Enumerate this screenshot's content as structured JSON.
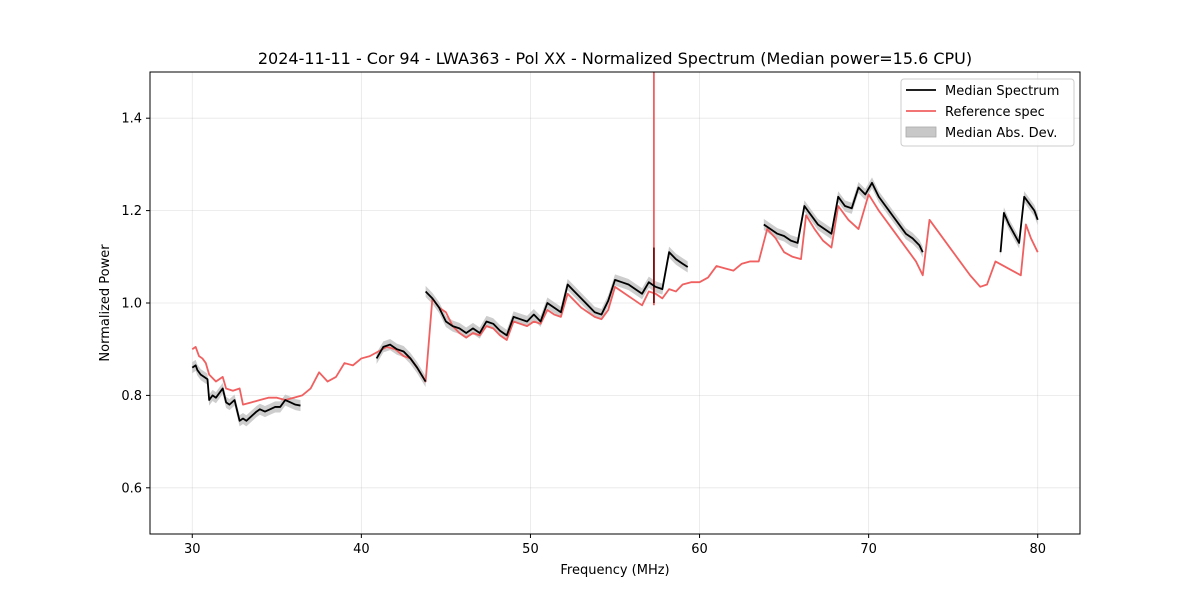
{
  "chart_data": {
    "type": "line",
    "title": "2024-11-11 - Cor 94 - LWA363 - Pol XX - Normalized Spectrum (Median power=15.6 CPU)",
    "xlabel": "Frequency (MHz)",
    "ylabel": "Normalized Power",
    "xlim": [
      27.5,
      82.5
    ],
    "ylim": [
      0.5,
      1.5
    ],
    "xticks": [
      30,
      40,
      50,
      60,
      70,
      80
    ],
    "yticks": [
      0.6,
      0.8,
      1.0,
      1.2,
      1.4
    ],
    "grid": true,
    "legend_position": "top-right",
    "colors": {
      "median": "#000000",
      "reference": "#f06060",
      "mad_band": "#c8c8c8",
      "overlap": "#7a1010"
    },
    "series": [
      {
        "name": "Median Spectrum",
        "segments": [
          {
            "x": [
              30.0,
              30.2,
              30.3,
              30.5,
              30.7,
              30.9,
              31.0,
              31.2,
              31.4,
              31.6,
              31.8,
              32.0,
              32.2,
              32.5,
              32.8,
              33.0,
              33.2,
              33.5,
              33.8,
              34.0,
              34.3,
              34.6,
              34.9,
              35.2,
              35.5,
              35.8,
              36.1,
              36.4
            ],
            "y": [
              0.86,
              0.865,
              0.855,
              0.845,
              0.84,
              0.835,
              0.79,
              0.8,
              0.795,
              0.805,
              0.815,
              0.785,
              0.78,
              0.79,
              0.745,
              0.75,
              0.745,
              0.755,
              0.765,
              0.77,
              0.765,
              0.77,
              0.775,
              0.775,
              0.79,
              0.785,
              0.78,
              0.778
            ]
          },
          {
            "x": [
              40.9,
              41.3,
              41.7,
              42.1,
              42.5,
              42.9,
              43.3,
              43.8
            ],
            "y": [
              0.88,
              0.905,
              0.91,
              0.9,
              0.895,
              0.88,
              0.86,
              0.83
            ]
          },
          {
            "x": [
              43.8,
              44.2,
              44.6,
              45.0,
              45.4,
              45.8,
              46.2,
              46.6,
              47.0,
              47.4,
              47.8,
              48.2,
              48.6,
              49.0,
              49.4,
              49.8,
              50.2,
              50.6,
              51.0,
              51.4,
              51.8,
              52.2,
              52.6,
              53.0,
              53.4,
              53.8,
              54.2,
              54.6,
              55.0,
              55.4,
              55.8,
              56.2,
              56.6,
              57.0,
              57.4,
              57.8,
              58.2,
              58.6,
              59.0,
              59.3
            ],
            "y": [
              1.025,
              1.01,
              0.99,
              0.96,
              0.95,
              0.945,
              0.935,
              0.945,
              0.935,
              0.96,
              0.955,
              0.94,
              0.93,
              0.97,
              0.965,
              0.96,
              0.975,
              0.96,
              1.0,
              0.99,
              0.98,
              1.04,
              1.025,
              1.01,
              0.995,
              0.98,
              0.975,
              1.005,
              1.05,
              1.045,
              1.04,
              1.03,
              1.02,
              1.045,
              1.035,
              1.03,
              1.11,
              1.095,
              1.085,
              1.078
            ]
          },
          {
            "x": [
              63.8,
              64.2,
              64.6,
              65.0,
              65.4,
              65.8,
              66.2,
              66.6,
              67.0,
              67.4,
              67.8,
              68.2,
              68.6,
              69.0,
              69.4,
              69.8,
              70.2,
              70.6,
              71.0,
              71.4,
              71.8,
              72.2,
              72.6,
              73.0,
              73.2
            ],
            "y": [
              1.17,
              1.16,
              1.15,
              1.145,
              1.135,
              1.13,
              1.21,
              1.19,
              1.17,
              1.16,
              1.15,
              1.23,
              1.21,
              1.205,
              1.25,
              1.235,
              1.26,
              1.23,
              1.21,
              1.19,
              1.17,
              1.15,
              1.14,
              1.125,
              1.11
            ]
          },
          {
            "x": [
              77.8,
              78.0,
              78.3,
              78.6,
              78.9,
              79.2,
              79.5,
              79.8,
              80.0
            ],
            "y": [
              1.11,
              1.195,
              1.17,
              1.15,
              1.13,
              1.23,
              1.215,
              1.2,
              1.18
            ]
          }
        ]
      },
      {
        "name": "Reference spec",
        "x": [
          30.0,
          30.2,
          30.4,
          30.6,
          30.8,
          31.0,
          31.4,
          31.8,
          32.0,
          32.4,
          32.8,
          33.0,
          33.5,
          34.0,
          34.5,
          35.0,
          35.5,
          36.0,
          36.5,
          37.0,
          37.5,
          38.0,
          38.5,
          39.0,
          39.5,
          40.0,
          40.5,
          41.0,
          41.5,
          42.0,
          42.5,
          42.9,
          43.3,
          43.8,
          44.2,
          44.6,
          45.0,
          45.4,
          45.8,
          46.2,
          46.6,
          47.0,
          47.4,
          47.8,
          48.2,
          48.6,
          49.0,
          49.4,
          49.8,
          50.2,
          50.6,
          51.0,
          51.4,
          51.8,
          52.2,
          52.6,
          53.0,
          53.4,
          53.8,
          54.2,
          54.6,
          55.0,
          55.4,
          55.8,
          56.2,
          56.6,
          57.0,
          57.4,
          57.8,
          58.2,
          58.6,
          59.0,
          59.5,
          60.0,
          60.5,
          61.0,
          61.5,
          62.0,
          62.5,
          63.0,
          63.5,
          64.0,
          64.5,
          65.0,
          65.5,
          66.0,
          66.3,
          66.8,
          67.3,
          67.8,
          68.2,
          68.8,
          69.4,
          70.0,
          70.6,
          71.2,
          71.6,
          72.2,
          72.8,
          73.2,
          73.6,
          74.2,
          74.8,
          75.4,
          76.0,
          76.6,
          77.0,
          77.5,
          78.0,
          78.5,
          79.0,
          79.3,
          79.6,
          80.0
        ],
        "y": [
          0.9,
          0.905,
          0.885,
          0.88,
          0.87,
          0.845,
          0.83,
          0.84,
          0.815,
          0.81,
          0.815,
          0.78,
          0.785,
          0.79,
          0.795,
          0.795,
          0.79,
          0.795,
          0.8,
          0.815,
          0.85,
          0.83,
          0.84,
          0.87,
          0.865,
          0.88,
          0.885,
          0.895,
          0.905,
          0.9,
          0.885,
          0.88,
          0.86,
          0.83,
          1.01,
          0.99,
          0.98,
          0.95,
          0.935,
          0.925,
          0.935,
          0.93,
          0.95,
          0.945,
          0.93,
          0.92,
          0.96,
          0.955,
          0.95,
          0.96,
          0.955,
          0.985,
          0.975,
          0.97,
          1.02,
          1.005,
          0.99,
          0.98,
          0.97,
          0.965,
          0.985,
          1.035,
          1.025,
          1.015,
          1.005,
          0.995,
          1.025,
          1.02,
          1.01,
          1.03,
          1.025,
          1.04,
          1.045,
          1.045,
          1.055,
          1.08,
          1.075,
          1.07,
          1.085,
          1.09,
          1.09,
          1.16,
          1.14,
          1.11,
          1.1,
          1.095,
          1.19,
          1.16,
          1.135,
          1.12,
          1.21,
          1.18,
          1.16,
          1.235,
          1.2,
          1.17,
          1.15,
          1.12,
          1.09,
          1.06,
          1.18,
          1.15,
          1.12,
          1.09,
          1.06,
          1.035,
          1.04,
          1.09,
          1.08,
          1.07,
          1.06,
          1.17,
          1.14,
          1.11
        ],
        "spike": {
          "x": 57.3,
          "y_from": 0.995,
          "y_to": 1.5
        }
      },
      {
        "name": "Median Abs. Dev.",
        "type": "band",
        "half_width": 0.012
      }
    ],
    "legend": [
      "Median Spectrum",
      "Reference spec",
      "Median Abs. Dev."
    ]
  }
}
